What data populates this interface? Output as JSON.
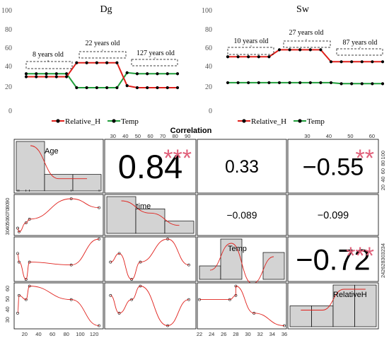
{
  "chart_data": [
    {
      "type": "line",
      "title": "Dg",
      "ylim": [
        0,
        100
      ],
      "yticks": [
        0,
        20,
        40,
        60,
        80,
        100
      ],
      "series": [
        {
          "name": "Relative_H",
          "color": "#e0201b",
          "values": [
            33,
            33,
            33,
            33,
            33,
            47,
            47,
            47,
            47,
            47,
            24,
            22,
            22,
            22,
            22,
            22
          ]
        },
        {
          "name": "Temp",
          "color": "#1f9e3a",
          "values": [
            36,
            36,
            36,
            36,
            36,
            22,
            22,
            22,
            22,
            22,
            37,
            36,
            36,
            36,
            36,
            36
          ]
        }
      ],
      "annotations": [
        "8 years old",
        "22 years old",
        "127 years old"
      ]
    },
    {
      "type": "line",
      "title": "Sw",
      "ylim": [
        0,
        100
      ],
      "yticks": [
        0,
        20,
        40,
        60,
        80,
        100
      ],
      "series": [
        {
          "name": "Relative_H",
          "color": "#e0201b",
          "values": [
            53,
            53,
            53,
            53,
            53,
            60,
            60,
            60,
            60,
            60,
            48,
            48,
            48,
            48,
            48,
            48
          ]
        },
        {
          "name": "Temp",
          "color": "#1f9e3a",
          "values": [
            27,
            27,
            27,
            27,
            27,
            27,
            27,
            27,
            27,
            27,
            27,
            26,
            26,
            26,
            26,
            26
          ]
        }
      ],
      "annotations": [
        "10 years old",
        "27 years old",
        "87 years old"
      ]
    },
    {
      "type": "scatter",
      "title": "Correlation",
      "variables": [
        "Age",
        "time",
        "Temp",
        "RelativeH"
      ],
      "correlations": [
        {
          "pair": [
            "Age",
            "time"
          ],
          "label": "0.84",
          "stars": "***"
        },
        {
          "pair": [
            "Age",
            "Temp"
          ],
          "label": "0.33",
          "stars": ""
        },
        {
          "pair": [
            "Age",
            "RelativeH"
          ],
          "label": "−0.55",
          "stars": "**"
        },
        {
          "pair": [
            "time",
            "Temp"
          ],
          "label": "−0.089",
          "stars": ""
        },
        {
          "pair": [
            "time",
            "RelativeH"
          ],
          "label": "−0.099",
          "stars": ""
        },
        {
          "pair": [
            "Temp",
            "RelativeH"
          ],
          "label": "−0.72",
          "stars": "***"
        }
      ],
      "axes": {
        "Age": {
          "range": [
            8,
            130
          ],
          "ticks": [
            "20",
            "40",
            "60",
            "80",
            "100",
            "120"
          ]
        },
        "time": {
          "range": [
            25,
            95
          ],
          "ticks": [
            "30",
            "40",
            "50",
            "60",
            "70",
            "80",
            "90"
          ]
        },
        "Temp": {
          "range": [
            22,
            36
          ],
          "ticks": [
            "22",
            "24",
            "26",
            "28",
            "30",
            "32",
            "34",
            "36"
          ]
        },
        "RelativeH": {
          "range": [
            22,
            62
          ],
          "ticks": [
            "30",
            "40",
            "50",
            "60"
          ]
        },
        "Age_right": {
          "ticks": [
            "20",
            "40",
            "60",
            "80",
            "100"
          ]
        }
      },
      "observations": [
        {
          "Age": 10,
          "time": 35,
          "Temp": 31,
          "RelativeH": 35
        },
        {
          "Age": 12,
          "time": 28,
          "Temp": 28,
          "RelativeH": 52
        },
        {
          "Age": 22,
          "time": 45,
          "Temp": 22,
          "RelativeH": 48
        },
        {
          "Age": 27,
          "time": 52,
          "Temp": 28,
          "RelativeH": 61
        },
        {
          "Age": 87,
          "time": 91,
          "Temp": 27,
          "RelativeH": 48
        },
        {
          "Age": 127,
          "time": 74,
          "Temp": 36,
          "RelativeH": 23
        }
      ],
      "histograms": {
        "Age": [
          3,
          1,
          1
        ],
        "time": [
          3,
          2,
          1
        ],
        "Temp": [
          1,
          3,
          0,
          2
        ],
        "RelativeH": [
          1,
          1,
          2,
          2
        ]
      }
    }
  ]
}
